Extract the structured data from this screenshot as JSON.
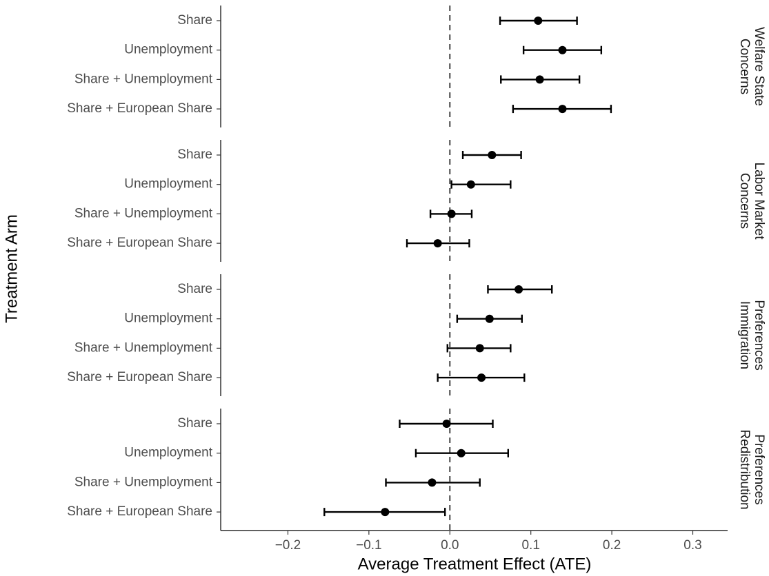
{
  "chart_data": {
    "type": "errorbar",
    "xlabel": "Average Treatment Effect (ATE)",
    "ylabel": "Treatment Arm",
    "categories": [
      "Share",
      "Unemployment",
      "Share + Unemployment",
      "Share + European Share"
    ],
    "xlim": [
      -0.283,
      0.343
    ],
    "xticks": [
      {
        "value": -0.2,
        "label": "−0.2"
      },
      {
        "value": -0.1,
        "label": "−0.1"
      },
      {
        "value": 0,
        "label": "0.0"
      },
      0.1,
      0.2,
      0.3
    ],
    "vline": 0,
    "color": "#000000",
    "panels": [
      {
        "label": [
          "Welfare State",
          "Concerns"
        ],
        "values": [
          0.109,
          0.139,
          0.111,
          0.139
        ],
        "lower": [
          0.062,
          0.091,
          0.063,
          0.078
        ],
        "upper": [
          0.157,
          0.187,
          0.16,
          0.199
        ]
      },
      {
        "label": [
          "Labor Market",
          "Concerns"
        ],
        "values": [
          0.052,
          0.026,
          0.002,
          -0.015
        ],
        "lower": [
          0.016,
          0.002,
          -0.024,
          -0.053
        ],
        "upper": [
          0.088,
          0.075,
          0.027,
          0.024
        ]
      },
      {
        "label": [
          "Preferences",
          "Immigration"
        ],
        "values": [
          0.085,
          0.049,
          0.037,
          0.039
        ],
        "lower": [
          0.047,
          0.009,
          -0.003,
          -0.015
        ],
        "upper": [
          0.126,
          0.089,
          0.075,
          0.092
        ]
      },
      {
        "label": [
          "Preferences",
          "Redistribution"
        ],
        "values": [
          -0.004,
          0.014,
          -0.022,
          -0.08
        ],
        "lower": [
          -0.062,
          -0.042,
          -0.079,
          -0.155
        ],
        "upper": [
          0.053,
          0.072,
          0.037,
          -0.006
        ]
      }
    ]
  }
}
